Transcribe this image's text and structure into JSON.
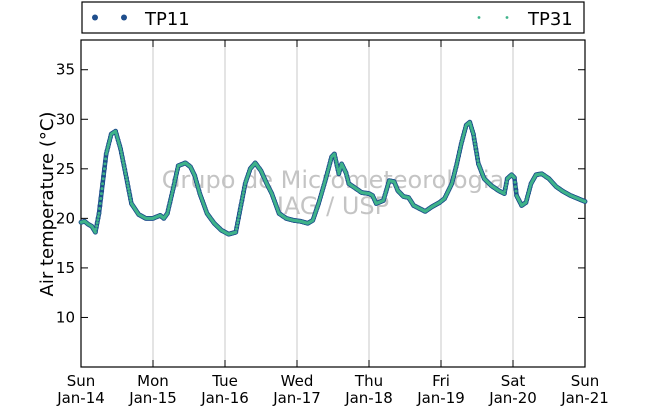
{
  "chart_data": {
    "type": "line",
    "ylabel": "Air temperature (°C)",
    "xlabel": "",
    "ylim": [
      5,
      38
    ],
    "xlim": [
      0,
      7
    ],
    "yticks": [
      10,
      15,
      20,
      25,
      30,
      35
    ],
    "grid": "vertical lines at day boundaries",
    "legend_position": "top, above plot",
    "x_ticks": [
      {
        "x": 0,
        "day": "Sun",
        "date": "Jan-14"
      },
      {
        "x": 1,
        "day": "Mon",
        "date": "Jan-15"
      },
      {
        "x": 2,
        "day": "Tue",
        "date": "Jan-16"
      },
      {
        "x": 3,
        "day": "Wed",
        "date": "Jan-17"
      },
      {
        "x": 4,
        "day": "Thu",
        "date": "Jan-18"
      },
      {
        "x": 5,
        "day": "Fri",
        "date": "Jan-19"
      },
      {
        "x": 6,
        "day": "Sat",
        "date": "Jan-20"
      },
      {
        "x": 7,
        "day": "Sun",
        "date": "Jan-21"
      }
    ],
    "watermark": [
      "Grupo de Micrometeorologia",
      "IAG / USP"
    ],
    "series": [
      {
        "name": "TP11",
        "color": "#1f4e8c",
        "marker": "dot"
      },
      {
        "name": "TP31",
        "color": "#3fb38a",
        "marker": "small-dot"
      }
    ],
    "points": [
      [
        0.0,
        19.6
      ],
      [
        0.05,
        19.7
      ],
      [
        0.1,
        19.4
      ],
      [
        0.15,
        19.2
      ],
      [
        0.2,
        18.6
      ],
      [
        0.25,
        20.5
      ],
      [
        0.3,
        23.5
      ],
      [
        0.35,
        26.5
      ],
      [
        0.42,
        28.5
      ],
      [
        0.48,
        28.8
      ],
      [
        0.55,
        27.0
      ],
      [
        0.62,
        24.5
      ],
      [
        0.7,
        21.5
      ],
      [
        0.8,
        20.4
      ],
      [
        0.9,
        20.0
      ],
      [
        1.0,
        20.0
      ],
      [
        1.1,
        20.3
      ],
      [
        1.15,
        20.0
      ],
      [
        1.2,
        20.5
      ],
      [
        1.28,
        23.0
      ],
      [
        1.35,
        25.3
      ],
      [
        1.45,
        25.6
      ],
      [
        1.52,
        25.2
      ],
      [
        1.58,
        24.3
      ],
      [
        1.65,
        22.5
      ],
      [
        1.75,
        20.5
      ],
      [
        1.85,
        19.5
      ],
      [
        1.95,
        18.8
      ],
      [
        2.05,
        18.4
      ],
      [
        2.15,
        18.6
      ],
      [
        2.2,
        20.5
      ],
      [
        2.28,
        23.5
      ],
      [
        2.35,
        25.0
      ],
      [
        2.42,
        25.6
      ],
      [
        2.5,
        24.8
      ],
      [
        2.58,
        23.5
      ],
      [
        2.65,
        22.5
      ],
      [
        2.75,
        20.5
      ],
      [
        2.85,
        20.0
      ],
      [
        2.95,
        19.8
      ],
      [
        3.05,
        19.7
      ],
      [
        3.15,
        19.5
      ],
      [
        3.22,
        19.8
      ],
      [
        3.3,
        21.5
      ],
      [
        3.4,
        24.0
      ],
      [
        3.48,
        26.2
      ],
      [
        3.52,
        26.5
      ],
      [
        3.58,
        24.5
      ],
      [
        3.62,
        25.5
      ],
      [
        3.68,
        24.6
      ],
      [
        3.72,
        23.5
      ],
      [
        3.8,
        23.1
      ],
      [
        3.9,
        22.6
      ],
      [
        4.0,
        22.5
      ],
      [
        4.05,
        22.3
      ],
      [
        4.1,
        21.5
      ],
      [
        4.2,
        21.8
      ],
      [
        4.28,
        23.8
      ],
      [
        4.35,
        23.7
      ],
      [
        4.4,
        22.8
      ],
      [
        4.48,
        22.2
      ],
      [
        4.55,
        22.1
      ],
      [
        4.62,
        21.3
      ],
      [
        4.7,
        21.0
      ],
      [
        4.78,
        20.7
      ],
      [
        4.88,
        21.2
      ],
      [
        4.98,
        21.6
      ],
      [
        5.05,
        22.0
      ],
      [
        5.15,
        23.5
      ],
      [
        5.22,
        25.5
      ],
      [
        5.28,
        27.5
      ],
      [
        5.35,
        29.4
      ],
      [
        5.4,
        29.7
      ],
      [
        5.45,
        28.5
      ],
      [
        5.52,
        25.5
      ],
      [
        5.6,
        24.0
      ],
      [
        5.7,
        23.3
      ],
      [
        5.8,
        22.8
      ],
      [
        5.88,
        22.5
      ],
      [
        5.92,
        24.0
      ],
      [
        5.98,
        24.4
      ],
      [
        6.02,
        24.1
      ],
      [
        6.05,
        22.3
      ],
      [
        6.12,
        21.3
      ],
      [
        6.18,
        21.6
      ],
      [
        6.25,
        23.5
      ],
      [
        6.32,
        24.4
      ],
      [
        6.4,
        24.5
      ],
      [
        6.5,
        24.0
      ],
      [
        6.6,
        23.2
      ],
      [
        6.7,
        22.7
      ],
      [
        6.8,
        22.3
      ],
      [
        6.9,
        22.0
      ],
      [
        7.0,
        21.7
      ]
    ]
  }
}
